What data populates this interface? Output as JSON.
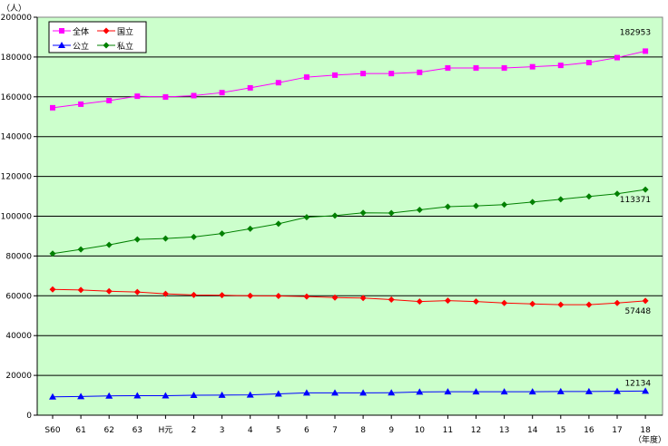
{
  "chart_data": {
    "type": "line",
    "unit_label": "（人）",
    "xlabel": "（年度）",
    "ylabel": "",
    "categories": [
      "S60",
      "61",
      "62",
      "63",
      "H元",
      "2",
      "3",
      "4",
      "5",
      "6",
      "7",
      "8",
      "9",
      "10",
      "11",
      "12",
      "13",
      "14",
      "15",
      "16",
      "17",
      "18"
    ],
    "ylim": [
      0,
      200000
    ],
    "yticks": [
      0,
      20000,
      40000,
      60000,
      80000,
      100000,
      120000,
      140000,
      160000,
      180000,
      200000
    ],
    "grid": true,
    "legend_position": "top-left",
    "series": [
      {
        "name": "全体",
        "color": "#ff00ff",
        "marker": "square",
        "values": [
          154500,
          156300,
          158100,
          160300,
          159900,
          160600,
          162100,
          164500,
          167100,
          169900,
          170900,
          171700,
          171700,
          172300,
          174500,
          174500,
          174500,
          175100,
          175800,
          177200,
          179700,
          182953
        ],
        "end_label": "182953"
      },
      {
        "name": "国立",
        "color": "#ff0000",
        "marker": "diamond",
        "values": [
          63200,
          62900,
          62300,
          61900,
          61000,
          60400,
          60300,
          60000,
          59900,
          59600,
          59100,
          58900,
          58100,
          57100,
          57600,
          57100,
          56400,
          55900,
          55500,
          55500,
          56400,
          57448
        ],
        "end_label": "57448"
      },
      {
        "name": "公立",
        "color": "#0000ff",
        "marker": "triangle",
        "values": [
          9200,
          9400,
          9700,
          9800,
          9800,
          10000,
          10100,
          10200,
          10700,
          11200,
          11200,
          11200,
          11300,
          11700,
          11800,
          11800,
          11800,
          11800,
          11900,
          11900,
          12000,
          12134
        ],
        "end_label": "12134"
      },
      {
        "name": "私立",
        "color": "#008000",
        "marker": "diamond",
        "values": [
          81200,
          83300,
          85600,
          88300,
          88800,
          89600,
          91300,
          93700,
          96200,
          99500,
          100300,
          101700,
          101600,
          103200,
          104800,
          105200,
          105800,
          107100,
          108500,
          109900,
          111300,
          113371
        ],
        "end_label": "113371"
      }
    ]
  }
}
